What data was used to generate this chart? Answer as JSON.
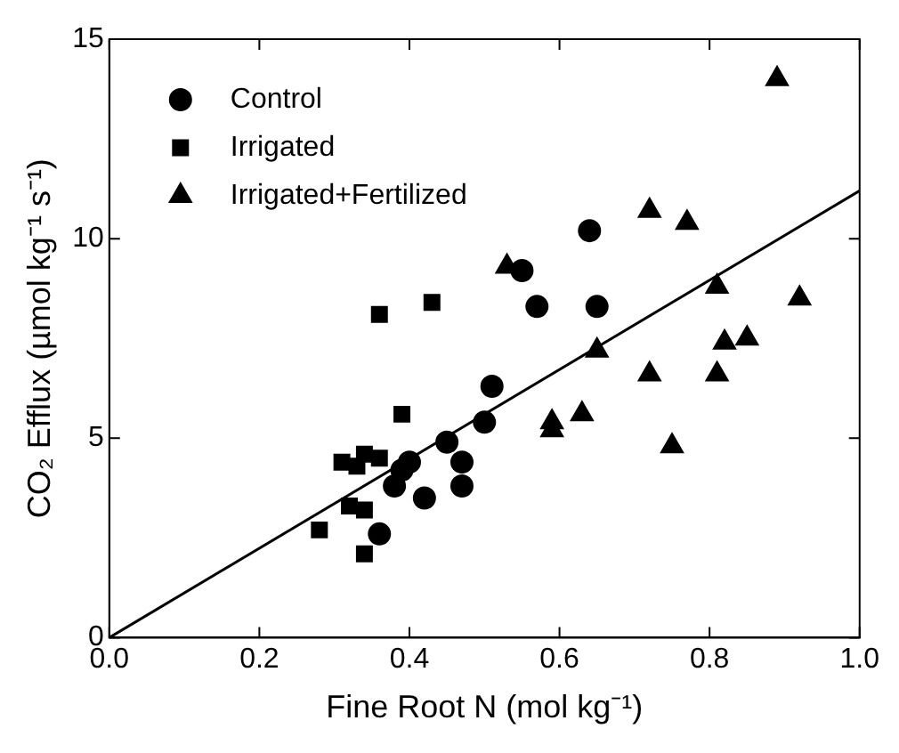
{
  "chart_data": {
    "type": "scatter",
    "xlabel": "Fine Root N (mol kg⁻¹)",
    "ylabel": "CO₂ Efflux (µmol kg⁻¹ s⁻¹)",
    "xlim": [
      0,
      1
    ],
    "ylim": [
      0,
      15
    ],
    "xticks": [
      {
        "value": 0,
        "label": "0.0"
      },
      {
        "value": 0.2,
        "label": "0.2"
      },
      {
        "value": 0.4,
        "label": "0.4"
      },
      {
        "value": 0.6,
        "label": "0.6"
      },
      {
        "value": 0.8,
        "label": "0.8"
      },
      {
        "value": 1,
        "label": "1.0"
      }
    ],
    "yticks": [
      0,
      5,
      10,
      15
    ],
    "grid": false,
    "legend": "top left",
    "series": [
      {
        "name": "Control",
        "color": "#000000",
        "marker": "circle",
        "x": [
          0.36,
          0.38,
          0.39,
          0.4,
          0.42,
          0.45,
          0.47,
          0.47,
          0.5,
          0.51,
          0.55,
          0.57,
          0.64,
          0.65
        ],
        "values": [
          2.6,
          3.8,
          4.2,
          4.4,
          3.5,
          4.9,
          4.4,
          3.8,
          5.4,
          6.3,
          9.2,
          8.3,
          10.2,
          8.3
        ]
      },
      {
        "name": "Irrigated",
        "color": "#000000",
        "marker": "square",
        "x": [
          0.28,
          0.31,
          0.33,
          0.32,
          0.34,
          0.34,
          0.36,
          0.36,
          0.39,
          0.43,
          0.34
        ],
        "values": [
          2.7,
          4.4,
          4.3,
          3.3,
          3.2,
          2.1,
          4.5,
          8.1,
          5.6,
          8.4,
          4.6
        ]
      },
      {
        "name": "Irrigated+Fertilized",
        "color": "#000000",
        "marker": "triangle",
        "x": [
          0.53,
          0.59,
          0.59,
          0.63,
          0.65,
          0.72,
          0.72,
          0.75,
          0.77,
          0.81,
          0.81,
          0.82,
          0.85,
          0.89,
          0.92
        ],
        "values": [
          9.3,
          5.2,
          5.4,
          5.6,
          7.2,
          10.7,
          6.6,
          4.8,
          10.4,
          8.8,
          6.6,
          7.4,
          7.5,
          14.0,
          8.5
        ]
      },
      {
        "type": "line",
        "color": "#000000",
        "marker": "none",
        "line_style": "solid",
        "x": [
          0,
          1
        ],
        "values": [
          0,
          11.2
        ]
      }
    ]
  }
}
